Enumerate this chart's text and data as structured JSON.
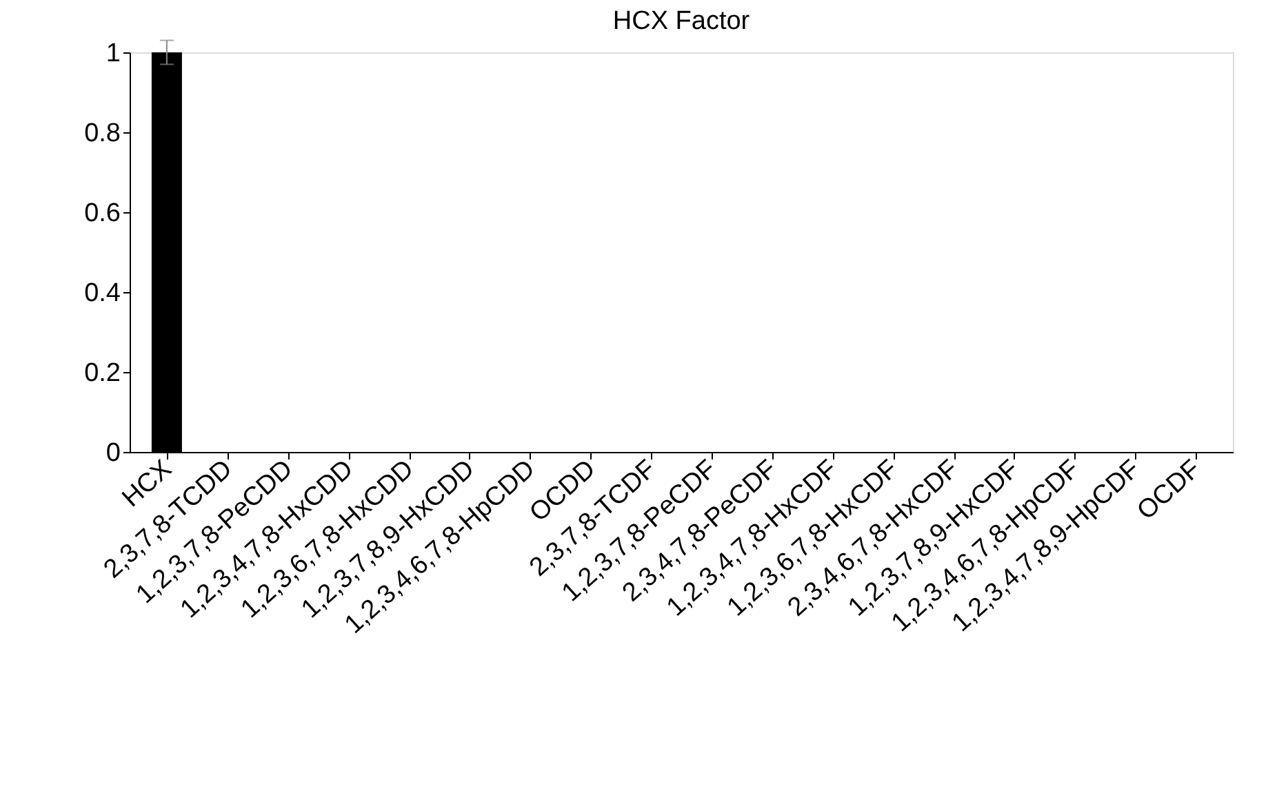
{
  "chart_data": {
    "type": "bar",
    "title": "HCX Factor",
    "categories": [
      "HCX",
      "2,3,7,8-TCDD",
      "1,2,3,7,8-PeCDD",
      "1,2,3,4,7,8-HxCDD",
      "1,2,3,6,7,8-HxCDD",
      "1,2,3,7,8,9-HxCDD",
      "1,2,3,4,6,7,8-HpCDD",
      "OCDD",
      "2,3,7,8-TCDF",
      "1,2,3,7,8-PeCDF",
      "2,3,4,7,8-PeCDF",
      "1,2,3,4,7,8-HxCDF",
      "1,2,3,6,7,8-HxCDF",
      "2,3,4,6,7,8-HxCDF",
      "1,2,3,7,8,9-HxCDF",
      "1,2,3,4,6,7,8-HpCDF",
      "1,2,3,4,7,8,9-HpCDF",
      "OCDF"
    ],
    "values": [
      1,
      0,
      0,
      0,
      0,
      0,
      0,
      0,
      0,
      0,
      0,
      0,
      0,
      0,
      0,
      0,
      0,
      0
    ],
    "errors": [
      0.03,
      null,
      null,
      null,
      null,
      null,
      null,
      null,
      null,
      null,
      null,
      null,
      null,
      null,
      null,
      null,
      null,
      null
    ],
    "color": "#000000",
    "ylim": [
      0,
      1
    ],
    "yticks": [
      0,
      0.2,
      0.4,
      0.6,
      0.8,
      1
    ],
    "grid": false
  }
}
